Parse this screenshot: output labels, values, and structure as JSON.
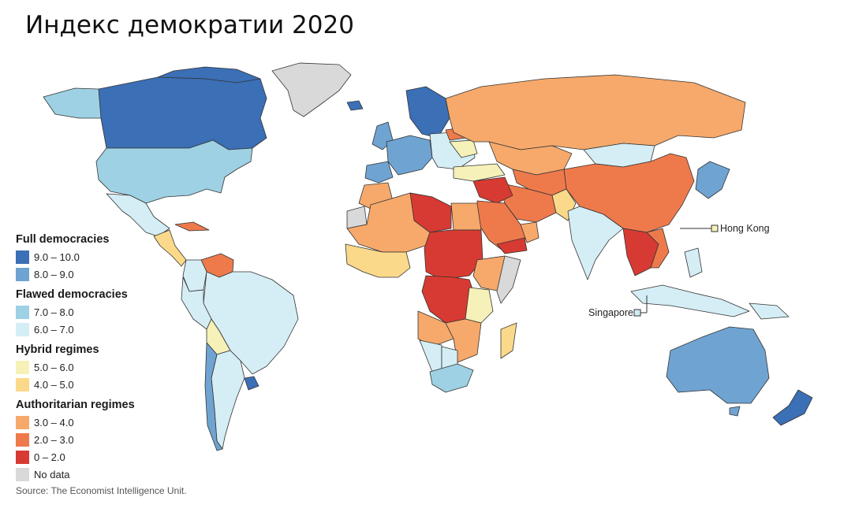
{
  "title": "Индекс демократии 2020",
  "source": "Source: The Economist Intelligence Unit.",
  "callouts": {
    "hong_kong": "Hong Kong",
    "singapore": "Singapore"
  },
  "legend": {
    "full": {
      "heading": "Full democracies",
      "items": [
        {
          "label": "9.0 – 10.0",
          "color": "#3b6fb6"
        },
        {
          "label": "8.0 – 9.0",
          "color": "#6fa3d2"
        }
      ]
    },
    "flawed": {
      "heading": "Flawed democracies",
      "items": [
        {
          "label": "7.0 – 8.0",
          "color": "#9dd1e3"
        },
        {
          "label": "6.0 – 7.0",
          "color": "#d5edf4"
        }
      ]
    },
    "hybrid": {
      "heading": "Hybrid regimes",
      "items": [
        {
          "label": "5.0 – 6.0",
          "color": "#f6f1b8"
        },
        {
          "label": "4.0 – 5.0",
          "color": "#fbd98a"
        }
      ]
    },
    "auth": {
      "heading": "Authoritarian regimes",
      "items": [
        {
          "label": "3.0 – 4.0",
          "color": "#f6a96b"
        },
        {
          "label": "2.0 – 3.0",
          "color": "#ee7a4c"
        },
        {
          "label": "0 – 2.0",
          "color": "#d73a32"
        }
      ]
    },
    "nodata": {
      "label": "No data",
      "color": "#d9d9d9"
    }
  }
}
